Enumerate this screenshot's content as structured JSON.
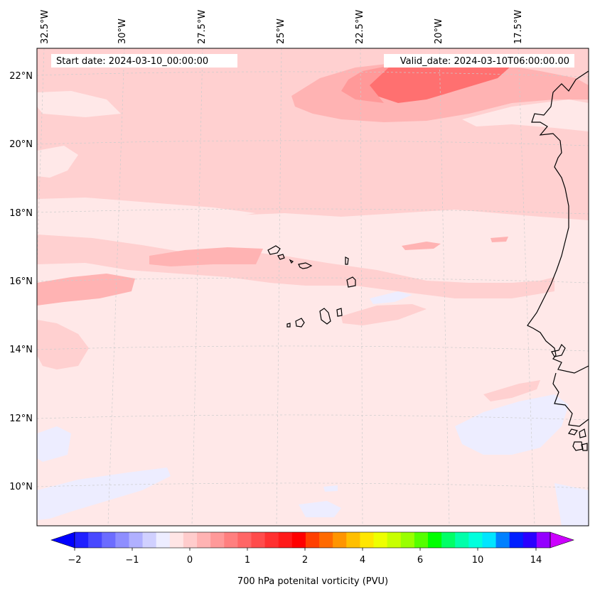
{
  "header": {
    "start_date": "Start date: 2024-03-10_00:00:00",
    "valid_date": "Valid_date: 2024-03-10T06:00:00.00"
  },
  "lon_labels": [
    "32.5°W",
    "30°W",
    "27.5°W",
    "25°W",
    "22.5°W",
    "20°W",
    "17.5°W"
  ],
  "lat_labels": [
    "22°N",
    "20°N",
    "18°N",
    "16°N",
    "14°N",
    "12°N",
    "10°N"
  ],
  "colorbar": {
    "title": "700 hPa potenital vorticity (PVU)",
    "tick_labels": [
      "−2",
      "−1",
      "0",
      "1",
      "2",
      "4",
      "6",
      "10",
      "14"
    ],
    "colors": [
      "#0000ff",
      "#2020ff",
      "#4848ff",
      "#6c6cff",
      "#8e8eff",
      "#b0b0ff",
      "#d0d0ff",
      "#ededff",
      "#ffe5e5",
      "#ffcccc",
      "#ffb3b3",
      "#ff9999",
      "#ff7f7f",
      "#ff6666",
      "#ff4c4c",
      "#ff3030",
      "#ff1a1a",
      "#ff0000",
      "#ff4000",
      "#ff6a00",
      "#ff9500",
      "#ffbf00",
      "#ffe600",
      "#eeff00",
      "#c8ff00",
      "#99ff00",
      "#55ff00",
      "#00ff00",
      "#00ff66",
      "#00ffaa",
      "#00ffdd",
      "#00e5ff",
      "#0080ff",
      "#0020ff",
      "#2a00ff",
      "#9400ff",
      "#cc00ff"
    ]
  },
  "field_colors": {
    "very_light_pink": "#ffe8e8",
    "light_pink": "#ffd0d0",
    "pink": "#ffb3b3",
    "mid_pink": "#ff9999",
    "dark_pink": "#ff7070",
    "pale_blue": "#ededff",
    "coast": "#000000",
    "grid": "#cccccc"
  }
}
